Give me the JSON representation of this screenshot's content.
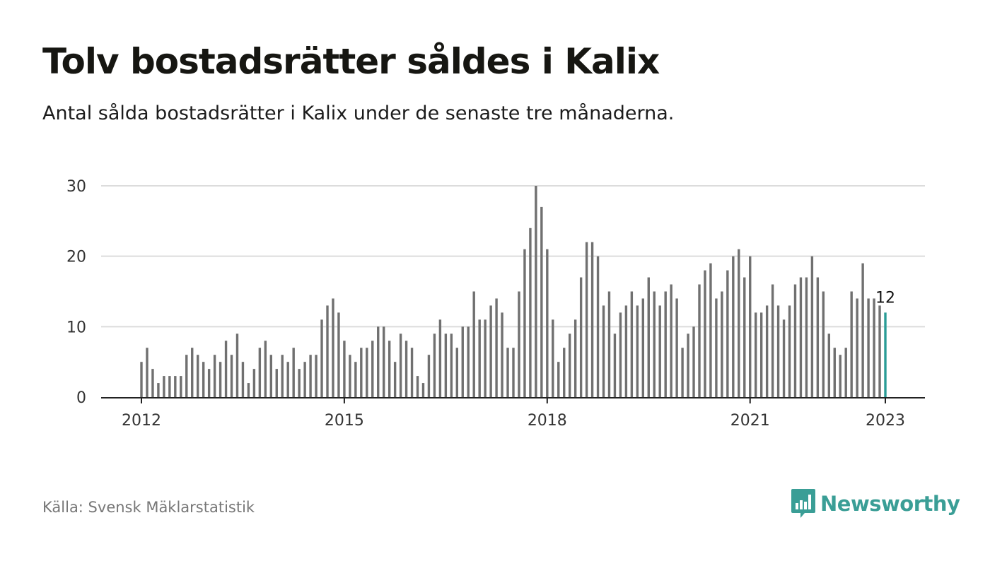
{
  "title": "Tolv bostadsrätter såldes i Kalix",
  "subtitle": "Antal sålda bostadsrätter i Kalix under de senaste tre månaderna.",
  "source": "Källa: Svensk Mäklarstatistik",
  "brand": {
    "name": "Newsworthy",
    "color": "#3a9e96",
    "icon": "newsworthy-logo-icon"
  },
  "chart_data": {
    "type": "bar",
    "title": "",
    "xlabel": "",
    "ylabel": "",
    "ylim": [
      0,
      30
    ],
    "yticks": [
      "0",
      "10",
      "20",
      "30"
    ],
    "xtick_labels": [
      "2012",
      "2015",
      "2018",
      "2021",
      "2023"
    ],
    "start": "2012-01",
    "end": "2023-01",
    "bar_color": "#707070",
    "highlight_color": "#2a9c96",
    "highlight_label": "12",
    "values": [
      5,
      7,
      4,
      2,
      3,
      3,
      3,
      3,
      6,
      7,
      6,
      5,
      4,
      6,
      5,
      8,
      6,
      9,
      5,
      2,
      4,
      7,
      8,
      6,
      4,
      6,
      5,
      7,
      4,
      5,
      6,
      6,
      11,
      13,
      14,
      12,
      8,
      6,
      5,
      7,
      7,
      8,
      10,
      10,
      8,
      5,
      9,
      8,
      7,
      3,
      2,
      6,
      9,
      11,
      9,
      9,
      7,
      10,
      10,
      15,
      11,
      11,
      13,
      14,
      12,
      7,
      7,
      15,
      21,
      24,
      30,
      27,
      21,
      11,
      5,
      7,
      9,
      11,
      17,
      22,
      22,
      20,
      13,
      15,
      9,
      12,
      13,
      15,
      13,
      14,
      17,
      15,
      13,
      15,
      16,
      14,
      7,
      9,
      10,
      16,
      18,
      19,
      14,
      15,
      18,
      20,
      21,
      17,
      20,
      12,
      12,
      13,
      16,
      13,
      11,
      13,
      16,
      17,
      17,
      20,
      17,
      15,
      9,
      7,
      6,
      7,
      15,
      14,
      19,
      14,
      14,
      13,
      12
    ]
  }
}
